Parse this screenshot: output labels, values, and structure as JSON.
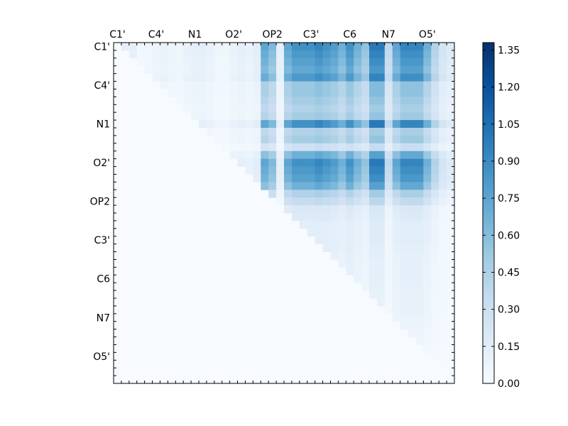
{
  "chart_data": {
    "type": "heatmap",
    "title": "",
    "xlabel": "",
    "ylabel": "",
    "rows": 44,
    "cols": 44,
    "upper_triangular": true,
    "tick_labels": [
      "C1'",
      "C4'",
      "N1",
      "O2'",
      "OP2",
      "C3'",
      "C6",
      "N7",
      "O5'"
    ],
    "tick_index_step": 5,
    "colorbar": {
      "min": 0.0,
      "max": 1.38,
      "ticks": [
        "0.00",
        "0.15",
        "0.30",
        "0.45",
        "0.60",
        "0.75",
        "0.90",
        "1.05",
        "1.20",
        "1.35"
      ],
      "colormap": "Blues",
      "colors": [
        "#f7fbff",
        "#deebf7",
        "#c6dbef",
        "#9ecae1",
        "#6baed6",
        "#4292c6",
        "#2171b5",
        "#08519c",
        "#08306b"
      ]
    },
    "col_strength": [
      0.02,
      0.1,
      0.1,
      0.04,
      0.05,
      0.06,
      0.08,
      0.06,
      0.05,
      0.08,
      0.1,
      0.1,
      0.08,
      0.05,
      0.05,
      0.08,
      0.1,
      0.08,
      0.12,
      0.6,
      0.5,
      0.1,
      0.6,
      0.7,
      0.7,
      0.7,
      0.75,
      0.7,
      0.65,
      0.55,
      0.7,
      0.55,
      0.45,
      0.8,
      0.8,
      0.3,
      0.6,
      0.75,
      0.75,
      0.75,
      0.55,
      0.35,
      0.2,
      0.15
    ],
    "row_strength": [
      0.9,
      0.85,
      0.8,
      0.75,
      0.85,
      0.55,
      0.55,
      0.5,
      0.45,
      0.5,
      0.9,
      0.45,
      0.5,
      0.3,
      0.7,
      0.9,
      0.85,
      0.8,
      0.7,
      0.45,
      0.35,
      0.2,
      0.18,
      0.15,
      0.15,
      0.15,
      0.14,
      0.13,
      0.12,
      0.12,
      0.12,
      0.11,
      0.1,
      0.1,
      0.1,
      0.09,
      0.08,
      0.07,
      0.06,
      0.05,
      0.04,
      0.03,
      0.02,
      0.0
    ]
  }
}
